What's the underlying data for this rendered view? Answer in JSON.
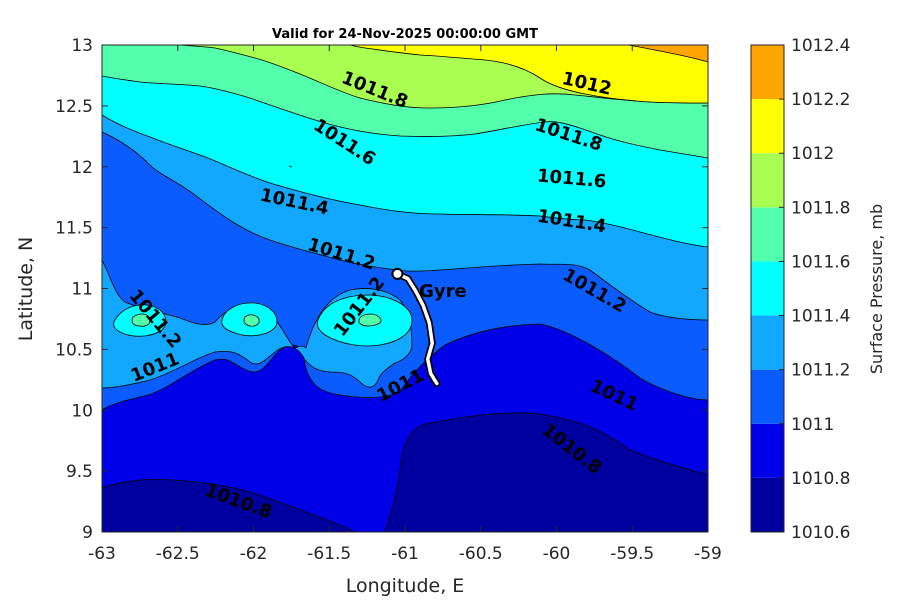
{
  "chart_data": {
    "type": "contour",
    "title": "Valid for 24-Nov-2025 00:00:00 GMT",
    "xlabel": "Longitude, E",
    "ylabel": "Latitude, N",
    "xlim": [
      -63,
      -59
    ],
    "ylim": [
      9,
      13
    ],
    "xticks": [
      -63,
      -62.5,
      -62,
      -61.5,
      -61,
      -60.5,
      -60,
      -59.5,
      -59
    ],
    "yticks": [
      9,
      9.5,
      10,
      10.5,
      11,
      11.5,
      12,
      12.5,
      13
    ],
    "colorbar": {
      "label": "Surface Pressure, mb",
      "levels": [
        1010.6,
        1010.8,
        1011,
        1011.2,
        1011.4,
        1011.6,
        1011.8,
        1012,
        1012.2,
        1012.4
      ],
      "tick_labels": [
        "1010.6",
        "1010.8",
        "1011",
        "1011.2",
        "1011.4",
        "1011.6",
        "1011.8",
        "1012",
        "1012.2",
        "1012.4"
      ],
      "colors": [
        "#00009e",
        "#0000e8",
        "#0a5cff",
        "#12a8ff",
        "#00ffff",
        "#52ffab",
        "#a8ff52",
        "#ffff00",
        "#ffa500",
        "#ff5500"
      ]
    },
    "contour_labels": [
      {
        "text": "1011.8",
        "lon": -61.2,
        "lat": 12.63,
        "angle": 22
      },
      {
        "text": "1011.6",
        "lon": -61.4,
        "lat": 12.2,
        "angle": 33
      },
      {
        "text": "1011.4",
        "lon": -61.73,
        "lat": 11.71,
        "angle": 12
      },
      {
        "text": "1011.2",
        "lon": -61.42,
        "lat": 11.28,
        "angle": 17
      },
      {
        "text": "1011.2",
        "lon": -62.65,
        "lat": 10.75,
        "angle": 50
      },
      {
        "text": "1011",
        "lon": -62.65,
        "lat": 10.35,
        "angle": -22
      },
      {
        "text": "1011.2",
        "lon": -61.3,
        "lat": 10.85,
        "angle": -52
      },
      {
        "text": "1011",
        "lon": -61.03,
        "lat": 10.2,
        "angle": -28
      },
      {
        "text": "1012",
        "lon": -59.8,
        "lat": 12.68,
        "angle": 13
      },
      {
        "text": "1011.8",
        "lon": -59.92,
        "lat": 12.26,
        "angle": 18
      },
      {
        "text": "1011.6",
        "lon": -59.9,
        "lat": 11.9,
        "angle": 5
      },
      {
        "text": "1011.4",
        "lon": -59.9,
        "lat": 11.55,
        "angle": 9
      },
      {
        "text": "1011.2",
        "lon": -59.75,
        "lat": 10.98,
        "angle": 30
      },
      {
        "text": "1011",
        "lon": -59.62,
        "lat": 10.12,
        "angle": 25
      },
      {
        "text": "1010.8",
        "lon": -59.9,
        "lat": 9.68,
        "angle": 38
      },
      {
        "text": "1010.8",
        "lon": -62.1,
        "lat": 9.25,
        "angle": 20
      }
    ],
    "annotation": {
      "text": "Gyre",
      "lon": -60.75,
      "lat": 10.98
    },
    "track": [
      [
        -61.05,
        11.12
      ],
      [
        -60.98,
        11.08
      ],
      [
        -60.93,
        10.98
      ],
      [
        -60.88,
        10.86
      ],
      [
        -60.84,
        10.72
      ],
      [
        -60.82,
        10.55
      ],
      [
        -60.85,
        10.42
      ],
      [
        -60.83,
        10.3
      ],
      [
        -60.79,
        10.22
      ]
    ]
  }
}
